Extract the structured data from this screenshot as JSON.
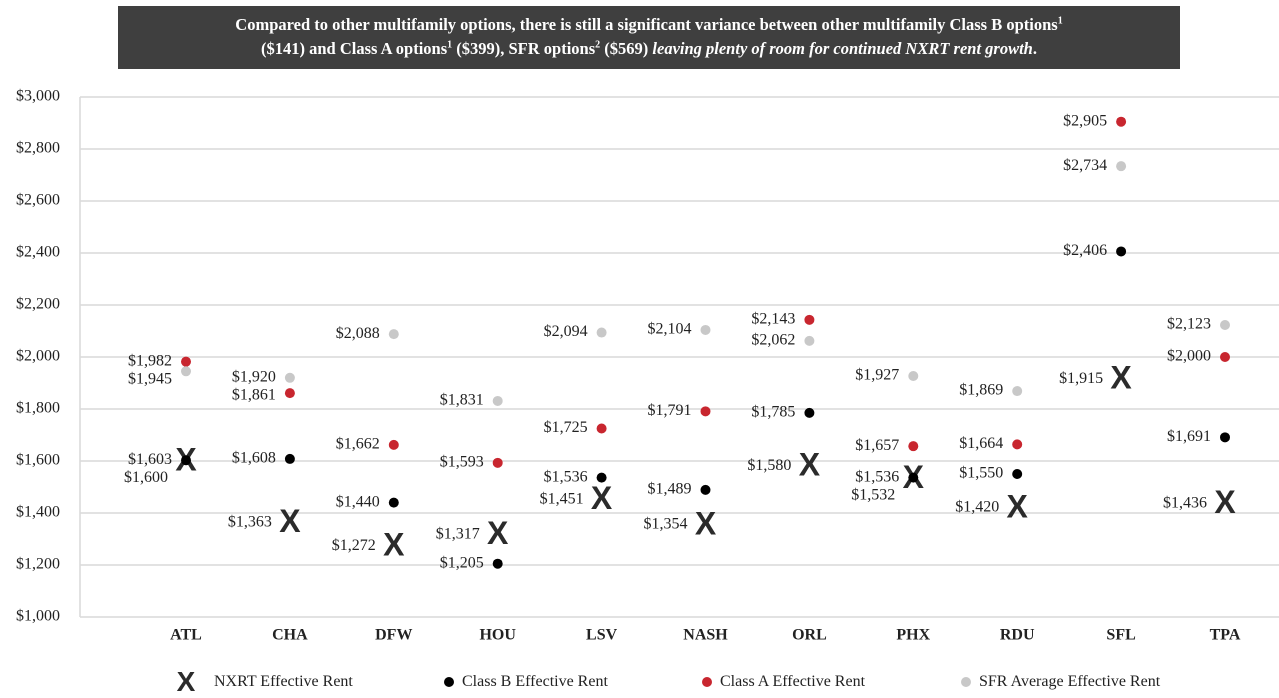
{
  "banner": {
    "part1": "Compared to other multifamily options, there is still a significant variance between other multifamily Class B options",
    "sup1": "1",
    "part2": "($141) and Class A options",
    "sup2": "1",
    "part3": " ($399), SFR options",
    "sup3": "2",
    "part4": " ($569) ",
    "italic": "leaving plenty of room for continued NXRT rent growth",
    "end": "."
  },
  "colors": {
    "nxrt": "#2b2b2b",
    "classB": "#000000",
    "classA": "#c8262f",
    "sfr": "#c8c8c8",
    "grid": "#d9d9d9"
  },
  "chart_data": {
    "type": "scatter",
    "categories": [
      "ATL",
      "CHA",
      "DFW",
      "HOU",
      "LSV",
      "NASH",
      "ORL",
      "PHX",
      "RDU",
      "SFL",
      "TPA"
    ],
    "ylim": [
      1000,
      3000
    ],
    "yticks": [
      1000,
      1200,
      1400,
      1600,
      1800,
      2000,
      2200,
      2400,
      2600,
      2800,
      3000
    ],
    "ytick_labels": [
      "$1,000",
      "$1,200",
      "$1,400",
      "$1,600",
      "$1,800",
      "$2,000",
      "$2,200",
      "$2,400",
      "$2,600",
      "$2,800",
      "$3,000"
    ],
    "grid": true,
    "legend_position": "bottom",
    "series": [
      {
        "key": "nxrt",
        "name": "NXRT Effective Rent",
        "marker": "X",
        "values": [
          1600,
          1363,
          1272,
          1317,
          1451,
          1354,
          1580,
          1532,
          1420,
          1915,
          1436
        ],
        "labels": [
          "$1,600",
          "$1,363",
          "$1,272",
          "$1,317",
          "$1,451",
          "$1,354",
          "$1,580",
          "$1,532",
          "$1,420",
          "$1,915",
          "$1,436"
        ]
      },
      {
        "key": "classB",
        "name": "Class B Effective Rent",
        "marker": "dot",
        "values": [
          1603,
          1608,
          1440,
          1205,
          1536,
          1489,
          1785,
          1536,
          1550,
          2406,
          1691
        ],
        "labels": [
          "$1,603",
          "$1,608",
          "$1,440",
          "$1,205",
          "$1,536",
          "$1,489",
          "$1,785",
          "$1,536",
          "$1,550",
          "$2,406",
          "$1,691"
        ]
      },
      {
        "key": "classA",
        "name": "Class A Effective Rent",
        "marker": "dot",
        "values": [
          1982,
          1861,
          1662,
          1593,
          1725,
          1791,
          2143,
          1657,
          1664,
          2905,
          2000
        ],
        "labels": [
          "$1,982",
          "$1,861",
          "$1,662",
          "$1,593",
          "$1,725",
          "$1,791",
          "$2,143",
          "$1,657",
          "$1,664",
          "$2,905",
          "$2,000"
        ]
      },
      {
        "key": "sfr",
        "name": "SFR Average Effective Rent",
        "marker": "dot",
        "values": [
          1945,
          1920,
          2088,
          1831,
          2094,
          2104,
          2062,
          1927,
          1869,
          2734,
          2123
        ],
        "labels": [
          "$1,945",
          "$1,920",
          "$2,088",
          "$1,831",
          "$2,094",
          "$2,104",
          "$2,062",
          "$1,927",
          "$1,869",
          "$2,734",
          "$2,123"
        ]
      }
    ]
  },
  "legend": {
    "nxrt": "NXRT Effective Rent",
    "nxrt_symbol": "X",
    "classB": "Class B Effective Rent",
    "classA": "Class A Effective Rent",
    "sfr": "SFR Average Effective Rent"
  }
}
